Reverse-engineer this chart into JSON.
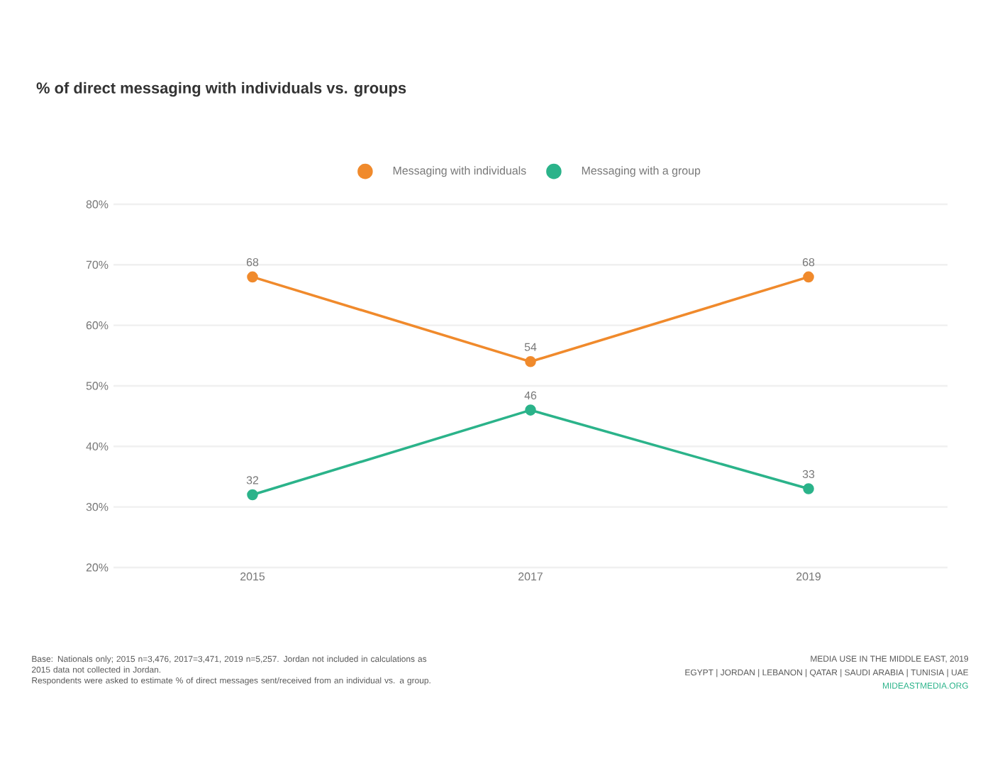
{
  "chart_data": {
    "type": "line",
    "title": "% of direct messaging with individuals vs. groups",
    "categories": [
      "2015",
      "2017",
      "2019"
    ],
    "series": [
      {
        "name": "Messaging with individuals",
        "color": "#f08a2c",
        "values": [
          68,
          54,
          68
        ]
      },
      {
        "name": "Messaging with a group",
        "color": "#2bb38a",
        "values": [
          32,
          46,
          33
        ]
      }
    ],
    "ylim": [
      20,
      80
    ],
    "yticks": [
      {
        "value": 20,
        "label": "20%"
      },
      {
        "value": 30,
        "label": "30%"
      },
      {
        "value": 40,
        "label": "40%"
      },
      {
        "value": 50,
        "label": "50%"
      },
      {
        "value": 60,
        "label": "60%"
      },
      {
        "value": 70,
        "label": "70%"
      },
      {
        "value": 80,
        "label": "80%"
      }
    ],
    "grid": "y",
    "legend": "top",
    "marker": "circle",
    "line_style": "solid",
    "data_labels": true,
    "annotations": [
      "Base: Nationals only; 2015 n=3,476, 2017=3,471, 2019 n=5,257. Jordan not included in calculations as 2015 data not collected in Jordan.",
      "Respondents were asked to estimate % of direct messages sent/received from an individual vs. a group.",
      "MEDIA USE IN THE MIDDLE EAST, 2019",
      "EGYPT | JORDAN | LEBANON | QATAR | SAUDI ARABIA | TUNISIA | UAE",
      "MIDEASTMEDIA.ORG"
    ]
  }
}
